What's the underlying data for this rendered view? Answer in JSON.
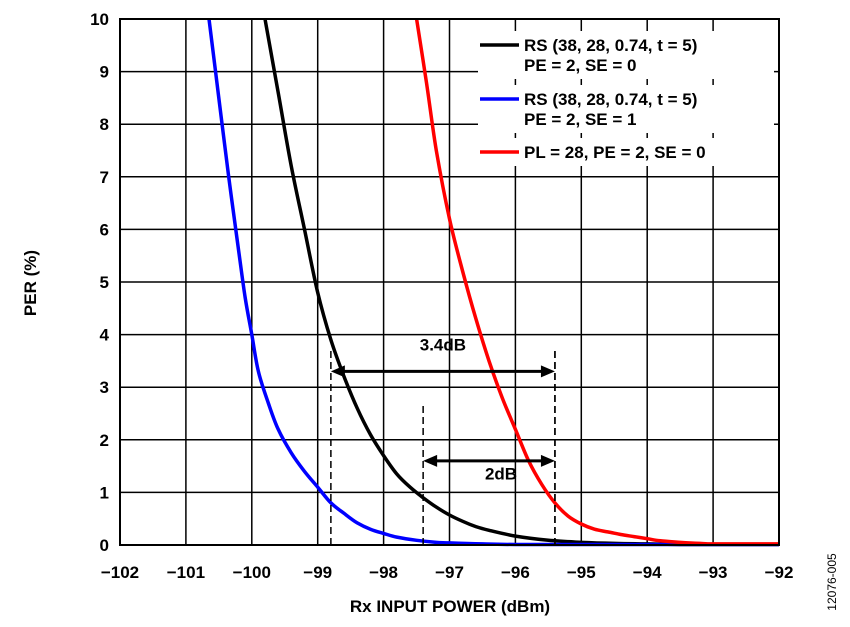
{
  "chart_data": {
    "type": "line",
    "xlabel": "Rx INPUT POWER (dBm)",
    "ylabel": "PER (%)",
    "xlim": [
      -102,
      -92
    ],
    "ylim": [
      0,
      10
    ],
    "xticks": [
      -102,
      -101,
      -100,
      -99,
      -98,
      -97,
      -96,
      -95,
      -94,
      -93,
      -92
    ],
    "yticks": [
      0,
      1,
      2,
      3,
      4,
      5,
      6,
      7,
      8,
      9,
      10
    ],
    "xtick_labels": [
      "−102",
      "−101",
      "−100",
      "−99",
      "−98",
      "−97",
      "−96",
      "−95",
      "−94",
      "−93",
      "−92"
    ],
    "ytick_labels": [
      "0",
      "1",
      "2",
      "3",
      "4",
      "5",
      "6",
      "7",
      "8",
      "9",
      "10"
    ],
    "grid": true,
    "legend_position": "top-right",
    "series": [
      {
        "name_lines": [
          "RS (38, 28, 0.74, t = 5)",
          "PE = 2, SE = 0"
        ],
        "color": "#000000",
        "x": [
          -99.8,
          -99.6,
          -99.4,
          -99.2,
          -99.0,
          -98.8,
          -98.6,
          -98.4,
          -98.2,
          -98.0,
          -97.8,
          -97.6,
          -97.4,
          -97.2,
          -97.0,
          -96.8,
          -96.6,
          -96.4,
          -96.0,
          -95.5,
          -95.0,
          -94.5,
          -94.0,
          -93.5,
          -93.0,
          -92.0
        ],
        "y": [
          10,
          8.6,
          7.2,
          6.0,
          4.8,
          3.9,
          3.2,
          2.6,
          2.1,
          1.7,
          1.35,
          1.1,
          0.9,
          0.72,
          0.57,
          0.45,
          0.35,
          0.28,
          0.17,
          0.09,
          0.05,
          0.03,
          0.02,
          0.01,
          0.01,
          0.01
        ]
      },
      {
        "name_lines": [
          "RS (38, 28, 0.74, t = 5)",
          "PE = 2, SE = 1"
        ],
        "color": "#0000ff",
        "x": [
          -100.65,
          -100.5,
          -100.35,
          -100.2,
          -100.1,
          -100.0,
          -99.9,
          -99.75,
          -99.6,
          -99.4,
          -99.2,
          -99.0,
          -98.8,
          -98.6,
          -98.4,
          -98.2,
          -98.0,
          -97.8,
          -97.5,
          -97.2,
          -97.0,
          -96.5,
          -96.0,
          -95.0,
          -94.0,
          -93.0,
          -92.0
        ],
        "y": [
          10,
          8.5,
          7.0,
          5.6,
          4.7,
          4.0,
          3.3,
          2.7,
          2.2,
          1.75,
          1.4,
          1.1,
          0.8,
          0.6,
          0.42,
          0.3,
          0.22,
          0.15,
          0.09,
          0.05,
          0.04,
          0.02,
          0.01,
          0.01,
          0.01,
          0.01,
          0.01
        ]
      },
      {
        "name_lines": [
          "PL = 28, PE = 2, SE = 0"
        ],
        "color": "#ff0000",
        "x": [
          -97.5,
          -97.35,
          -97.2,
          -97.0,
          -96.8,
          -96.6,
          -96.4,
          -96.2,
          -96.0,
          -95.8,
          -95.6,
          -95.4,
          -95.2,
          -95.0,
          -94.8,
          -94.6,
          -94.4,
          -94.2,
          -94.0,
          -93.8,
          -93.5,
          -93.2,
          -93.0,
          -92.5,
          -92.0
        ],
        "y": [
          10,
          8.8,
          7.5,
          6.2,
          5.2,
          4.3,
          3.5,
          2.8,
          2.2,
          1.6,
          1.15,
          0.8,
          0.55,
          0.4,
          0.3,
          0.25,
          0.2,
          0.16,
          0.12,
          0.08,
          0.05,
          0.03,
          0.02,
          0.02,
          0.02
        ]
      }
    ],
    "annotations": [
      {
        "label": "3.4dB",
        "x_from": -98.8,
        "x_to": -95.4,
        "y": 3.3,
        "label_y": 3.7,
        "dash_from": [
          -98.8,
          0,
          3.7
        ],
        "dash_to": [
          -95.4,
          0,
          3.7
        ]
      },
      {
        "label": "2dB",
        "x_from": -97.4,
        "x_to": -95.4,
        "y": 1.6,
        "label_y": 1.25,
        "dash_from": [
          -97.4,
          0,
          2.7
        ],
        "dash_to": [
          -95.4,
          0,
          3.7
        ]
      }
    ]
  },
  "figure_id": "12076-005"
}
